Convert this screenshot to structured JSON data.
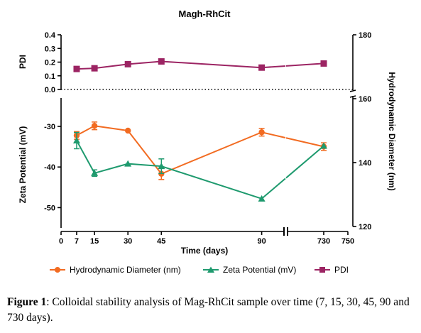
{
  "chart_data": {
    "type": "line",
    "title": "Magh-RhCit",
    "xlabel": "Time (days)",
    "ylabel_pdi": "PDI",
    "ylabel_zeta": "Zeta Potential (mV)",
    "ylabel_right": "Hydrodynamic Diameter (nm)",
    "x_ticks": [
      "0",
      "7",
      "15",
      "30",
      "45",
      "90",
      "730",
      "750"
    ],
    "x_break": [
      100,
      700
    ],
    "pdi_ticks": [
      "0.4",
      "0.3",
      "0.2",
      "0.1",
      "0.0"
    ],
    "pdi_range": [
      0,
      0.4
    ],
    "zeta_ticks": [
      "-30",
      "-40",
      "-50"
    ],
    "zeta_range": [
      -55,
      -23
    ],
    "right_ticks": [
      "180",
      "160",
      "140",
      "120"
    ],
    "right_range": [
      120,
      180
    ],
    "legend_position": "bottom",
    "series": [
      {
        "name": "Hydrodynamic Diameter (nm)",
        "axis": "right",
        "color": "#F26B21",
        "marker": "circle",
        "x": [
          7,
          15,
          30,
          45,
          90,
          730
        ],
        "y": [
          148.5,
          151.5,
          150,
          136.5,
          149.5,
          145
        ],
        "err": [
          1.2,
          1.2,
          0,
          1.8,
          1.2,
          1.2
        ]
      },
      {
        "name": "Zeta Potential (mV)",
        "axis": "zeta",
        "color": "#1E9A6E",
        "marker": "triangle",
        "x": [
          7,
          15,
          30,
          45,
          90,
          730
        ],
        "y": [
          -33.5,
          -41.5,
          -39.2,
          -39.8,
          -47.8,
          -34.8
        ],
        "err": [
          2,
          0.8,
          0,
          1.8,
          0,
          0
        ]
      },
      {
        "name": "PDI",
        "axis": "pdi",
        "color": "#9C2463",
        "marker": "square",
        "x": [
          7,
          15,
          30,
          45,
          90,
          730
        ],
        "y": [
          0.15,
          0.155,
          0.185,
          0.205,
          0.16,
          0.19
        ],
        "err": [
          0,
          0,
          0,
          0,
          0,
          0
        ]
      }
    ]
  },
  "caption": {
    "label": "Figure 1",
    "text": ": Colloidal stability analysis of Mag-RhCit sample over time (7, 15, 30, 45, 90 and 730 days)."
  }
}
